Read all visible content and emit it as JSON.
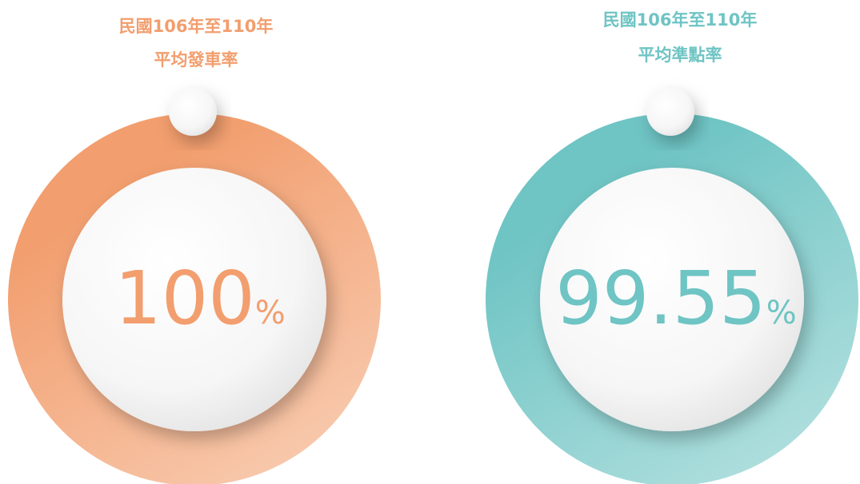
{
  "panels": [
    {
      "title_line1": "民國106年至110年",
      "title_line2": "平均發車率",
      "value": "100",
      "unit": "%"
    },
    {
      "title_line1": "民國106年至110年",
      "title_line2": "平均準點率",
      "value": "99.55",
      "unit": "%"
    }
  ]
}
